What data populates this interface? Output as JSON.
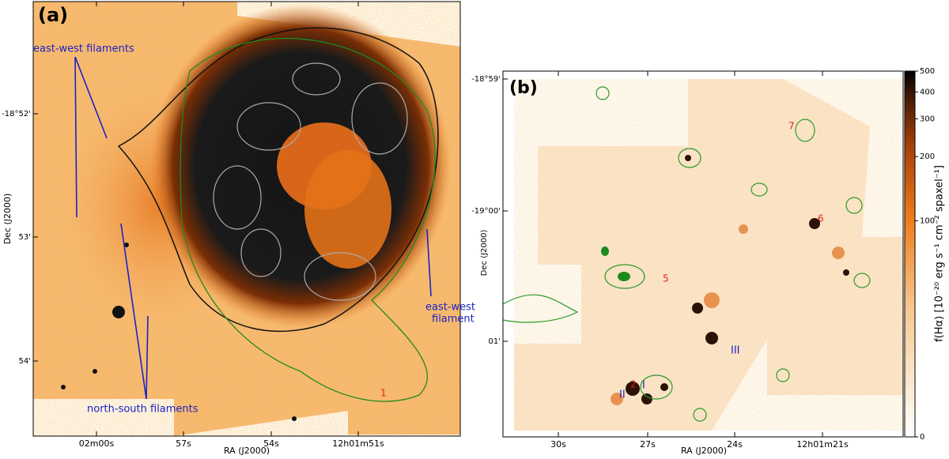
{
  "panels": [
    {
      "label": "(a)",
      "xlabel": "RA (J2000)",
      "ylabel": "Dec (J2000)",
      "xticks": [
        "02m00s",
        "57s",
        "54s",
        "12h01m51s"
      ],
      "yticks": [
        "-18°52'",
        "53'",
        "54'"
      ],
      "annotations": {
        "ew_filaments": "east-west filaments",
        "ns_filaments": "north-south filaments",
        "ew_filament": [
          "east-west",
          "filament"
        ],
        "region": "1"
      }
    },
    {
      "label": "(b)",
      "xlabel": "RA (J2000)",
      "ylabel": "Dec (J2000)",
      "xticks": [
        "30s",
        "27s",
        "24s",
        "12h01m21s"
      ],
      "yticks": [
        "-18°59'",
        "-19°00'",
        "01'"
      ],
      "annotations": {
        "red": [
          "2",
          "5",
          "6",
          "7"
        ],
        "blue": [
          "I",
          "II",
          "III"
        ]
      }
    }
  ],
  "colorbar": {
    "label": "f(Hα) [10⁻²⁰ erg s⁻¹ cm⁻² spaxel⁻¹]",
    "ticks": [
      0,
      100,
      200,
      300,
      400,
      500
    ]
  }
}
